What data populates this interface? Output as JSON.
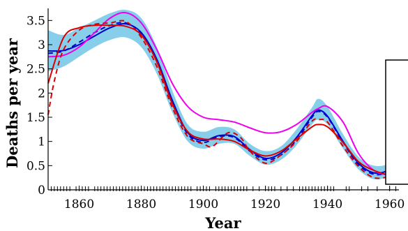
{
  "chart_data": {
    "type": "line",
    "title": "",
    "xlabel": "Year",
    "ylabel": "Deaths per year",
    "xlim": [
      1850,
      1963
    ],
    "ylim": [
      0,
      3.75
    ],
    "xticks": [
      1860,
      1880,
      1900,
      1920,
      1940,
      1960
    ],
    "yticks": [
      0,
      0.5,
      1,
      1.5,
      2,
      2.5,
      3,
      3.5
    ],
    "xtick_labels": [
      "1860",
      "1880",
      "1900",
      "1920",
      "1940",
      "1960"
    ],
    "ytick_labels": [
      "0",
      "0.5",
      "1",
      "1.5",
      "2",
      "2.5",
      "3",
      "3.5"
    ],
    "grid": false,
    "legend": "partially visible box at right edge (entries cut off)",
    "band": {
      "color": "#87CEEB",
      "x": [
        1850,
        1855,
        1860,
        1865,
        1870,
        1875,
        1880,
        1885,
        1890,
        1895,
        1900,
        1905,
        1910,
        1915,
        1920,
        1925,
        1930,
        1935,
        1937,
        1940,
        1945,
        1950,
        1955,
        1960,
        1963
      ],
      "lower": [
        2.45,
        2.55,
        2.75,
        2.95,
        3.1,
        3.15,
        2.95,
        2.4,
        1.6,
        1.0,
        0.85,
        0.95,
        0.95,
        0.7,
        0.52,
        0.62,
        0.92,
        1.35,
        1.45,
        1.35,
        0.85,
        0.42,
        0.22,
        0.3,
        0.55
      ],
      "upper": [
        3.3,
        3.2,
        3.35,
        3.5,
        3.65,
        3.72,
        3.55,
        2.95,
        2.05,
        1.35,
        1.2,
        1.3,
        1.25,
        0.95,
        0.8,
        0.9,
        1.25,
        1.7,
        1.88,
        1.72,
        1.15,
        0.68,
        0.5,
        0.55,
        0.82
      ]
    },
    "series": [
      {
        "color": "#0000CC",
        "dash": "solid",
        "x": [
          1850,
          1855,
          1860,
          1865,
          1870,
          1875,
          1880,
          1885,
          1890,
          1895,
          1900,
          1905,
          1910,
          1915,
          1920,
          1925,
          1930,
          1935,
          1937,
          1940,
          1945,
          1950,
          1955,
          1960,
          1963
        ],
        "y": [
          2.87,
          2.88,
          3.0,
          3.18,
          3.35,
          3.43,
          3.25,
          2.7,
          1.85,
          1.18,
          1.02,
          1.12,
          1.1,
          0.83,
          0.65,
          0.76,
          1.08,
          1.53,
          1.65,
          1.52,
          1.0,
          0.55,
          0.35,
          0.42,
          0.66
        ]
      },
      {
        "color": "#0000CC",
        "dash": "dashed",
        "x": [
          1850,
          1855,
          1860,
          1865,
          1870,
          1875,
          1880,
          1885,
          1890,
          1895,
          1900,
          1905,
          1910,
          1915,
          1920,
          1925,
          1930,
          1935,
          1937,
          1940,
          1945,
          1950,
          1955,
          1960,
          1963
        ],
        "y": [
          2.82,
          2.87,
          3.05,
          3.25,
          3.4,
          3.45,
          3.22,
          2.65,
          1.8,
          1.15,
          0.98,
          1.1,
          1.08,
          0.8,
          0.62,
          0.72,
          1.03,
          1.5,
          1.62,
          1.5,
          0.98,
          0.52,
          0.32,
          0.38,
          0.6
        ]
      },
      {
        "color": "#EE00EE",
        "dash": "solid",
        "x": [
          1850,
          1855,
          1860,
          1865,
          1870,
          1875,
          1880,
          1885,
          1890,
          1895,
          1900,
          1905,
          1910,
          1915,
          1920,
          1925,
          1930,
          1935,
          1937,
          1940,
          1945,
          1950,
          1955,
          1960,
          1963
        ],
        "y": [
          2.75,
          2.78,
          2.95,
          3.25,
          3.55,
          3.66,
          3.45,
          2.9,
          2.2,
          1.72,
          1.5,
          1.45,
          1.4,
          1.28,
          1.18,
          1.2,
          1.35,
          1.6,
          1.68,
          1.72,
          1.4,
          0.75,
          0.4,
          0.3,
          0.28
        ]
      },
      {
        "color": "#DD0000",
        "dash": "solid",
        "x": [
          1850,
          1855,
          1860,
          1865,
          1870,
          1875,
          1880,
          1885,
          1890,
          1895,
          1900,
          1905,
          1910,
          1915,
          1920,
          1925,
          1930,
          1935,
          1937,
          1940,
          1945,
          1950,
          1955,
          1960,
          1963
        ],
        "y": [
          2.2,
          3.15,
          3.35,
          3.4,
          3.4,
          3.38,
          3.2,
          2.65,
          1.78,
          1.2,
          1.05,
          1.05,
          1.0,
          0.82,
          0.7,
          0.8,
          1.05,
          1.3,
          1.35,
          1.3,
          0.98,
          0.58,
          0.4,
          0.3,
          0.28
        ]
      },
      {
        "color": "#DD0000",
        "dash": "dashed",
        "x": [
          1850,
          1852,
          1855,
          1860,
          1865,
          1870,
          1875,
          1880,
          1885,
          1890,
          1895,
          1900,
          1903,
          1908,
          1912,
          1915,
          1920,
          1925,
          1930,
          1935,
          1937,
          1940,
          1945,
          1950,
          1955,
          1960,
          1963
        ],
        "y": [
          1.55,
          2.25,
          2.9,
          3.3,
          3.42,
          3.45,
          3.48,
          3.15,
          2.55,
          1.7,
          1.1,
          0.95,
          0.9,
          1.18,
          1.08,
          0.8,
          0.55,
          0.72,
          1.0,
          1.42,
          1.45,
          1.4,
          0.9,
          0.48,
          0.25,
          0.27,
          0.3
        ]
      }
    ],
    "rug_years": [
      1851,
      1852,
      1853,
      1854,
      1855,
      1856,
      1857,
      1859,
      1860,
      1861,
      1862,
      1863,
      1865,
      1866,
      1867,
      1868,
      1869,
      1870,
      1871,
      1872,
      1873,
      1874,
      1875,
      1876,
      1877,
      1878,
      1879,
      1880,
      1881,
      1882,
      1883,
      1884,
      1885,
      1886,
      1887,
      1888,
      1889,
      1890,
      1891,
      1892,
      1893,
      1894,
      1895,
      1896,
      1898,
      1899,
      1900,
      1901,
      1902,
      1904,
      1905,
      1906,
      1907,
      1908,
      1909,
      1910,
      1911,
      1912,
      1913,
      1914,
      1916,
      1918,
      1920,
      1921,
      1922,
      1923,
      1925,
      1927,
      1929,
      1931,
      1932,
      1933,
      1934,
      1935,
      1936,
      1937,
      1938,
      1939,
      1940,
      1941,
      1942,
      1946,
      1947,
      1951,
      1953,
      1956,
      1960,
      1962
    ]
  }
}
